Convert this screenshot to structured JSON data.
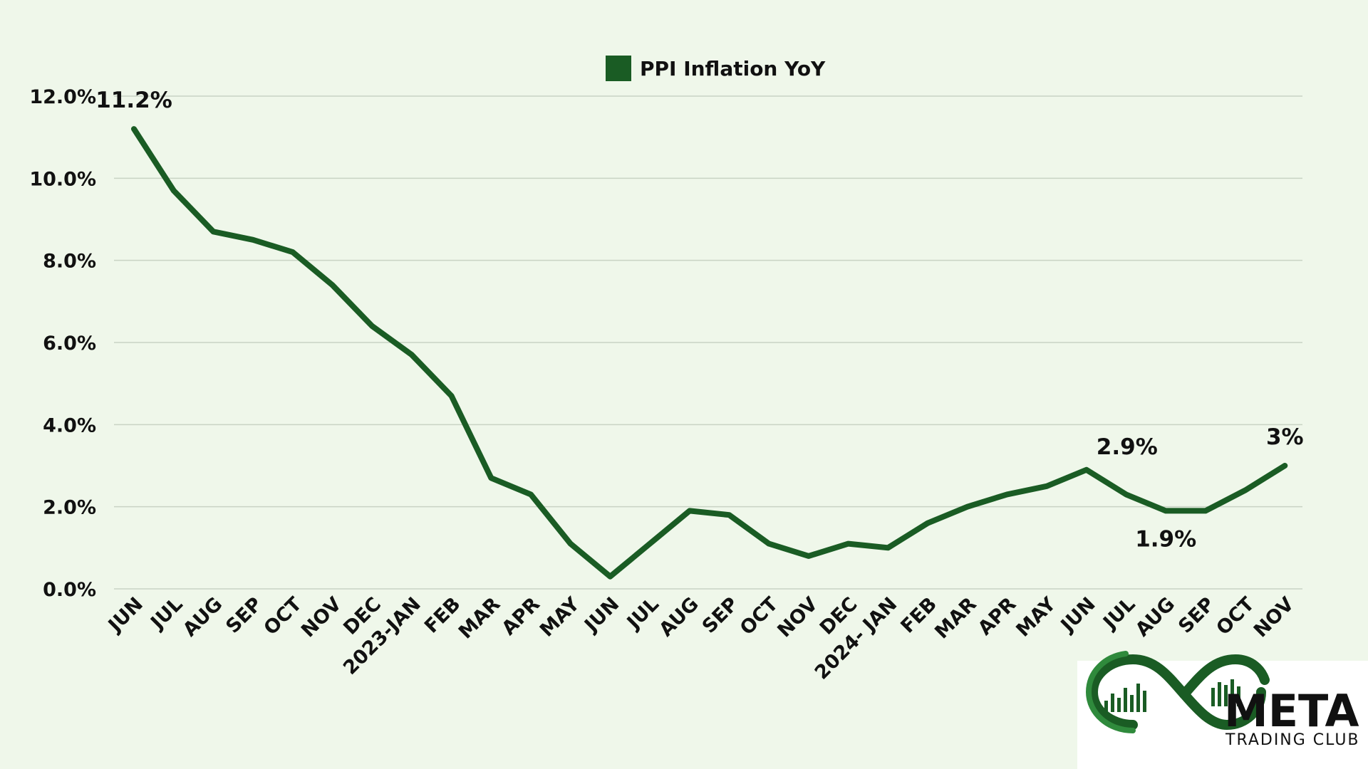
{
  "chart_data": {
    "type": "line",
    "categories": [
      "JUN",
      "JUL",
      "AUG",
      "SEP",
      "OCT",
      "NOV",
      "DEC",
      "2023-JAN",
      "FEB",
      "MAR",
      "APR",
      "MAY",
      "JUN",
      "JUL",
      "AUG",
      "SEP",
      "OCT",
      "NOV",
      "DEC",
      "2024- JAN",
      "FEB",
      "MAR",
      "APR",
      "MAY",
      "JUN",
      "JUL",
      "AUG",
      "SEP",
      "OCT",
      "NOV"
    ],
    "series": [
      {
        "name": "PPI Inflation YoY",
        "values": [
          11.2,
          9.7,
          8.7,
          8.5,
          8.2,
          7.4,
          6.4,
          5.7,
          4.7,
          2.7,
          2.3,
          1.1,
          0.3,
          1.1,
          1.9,
          1.8,
          1.1,
          0.8,
          1.1,
          1.0,
          1.6,
          2.0,
          2.3,
          2.5,
          2.9,
          2.3,
          1.9,
          1.9,
          2.4,
          3.0
        ]
      }
    ],
    "ylim": [
      0,
      12
    ],
    "yticks": [
      "0.0%",
      "2.0%",
      "4.0%",
      "6.0%",
      "8.0%",
      "10.0%",
      "12.0%"
    ],
    "ytick_values": [
      0,
      2,
      4,
      6,
      8,
      10,
      12
    ],
    "grid": true,
    "legend_position": "top-center",
    "color": "#1a5c24",
    "annotations": [
      {
        "index": 0,
        "text": "11.2%",
        "placement": "above"
      },
      {
        "index": 24,
        "text": "2.9%",
        "placement": "above-right"
      },
      {
        "index": 26,
        "text": "1.9%",
        "placement": "below"
      },
      {
        "index": 29,
        "text": "3%",
        "placement": "above"
      }
    ]
  },
  "logo": {
    "word": "META",
    "sub": "TRADING CLUB",
    "color": "#1a5c24"
  }
}
